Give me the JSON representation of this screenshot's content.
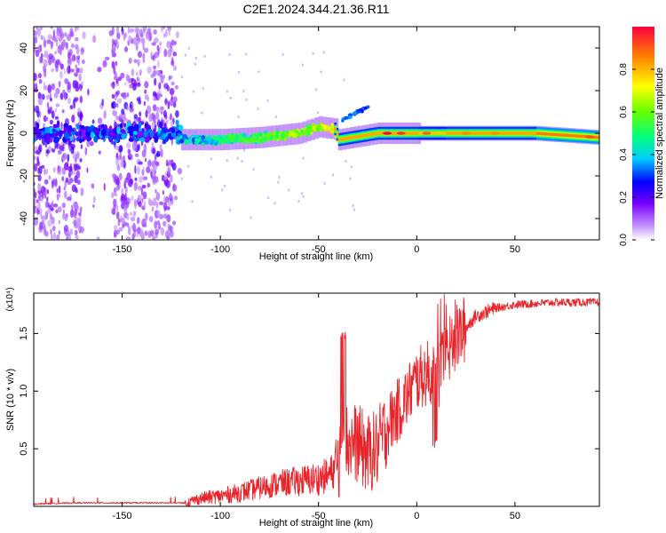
{
  "title": "C2E1.2024.344.21.36.R11",
  "chart_data": [
    {
      "type": "heatmap",
      "id": "spectrogram",
      "xlabel": "Height of straight line (km)",
      "ylabel": "Frequency (Hz)",
      "xlim": [
        -195,
        93
      ],
      "ylim": [
        -50,
        50
      ],
      "xticks": [
        -150,
        -100,
        -50,
        0,
        50
      ],
      "yticks": [
        -40,
        -20,
        0,
        20,
        40
      ],
      "grid": false,
      "colorbar": {
        "label": "Normalized spectral amplitude",
        "range": [
          0,
          1
        ],
        "ticks": [
          0.0,
          0.2,
          0.4,
          0.6,
          0.8
        ]
      },
      "ridge": {
        "description": "dominant frequency track",
        "points": [
          {
            "x": -195,
            "y": 0
          },
          {
            "x": -120,
            "y": -3
          },
          {
            "x": -100,
            "y": -3
          },
          {
            "x": -80,
            "y": -2
          },
          {
            "x": -60,
            "y": 0
          },
          {
            "x": -50,
            "y": 3
          },
          {
            "x": -42,
            "y": 2
          },
          {
            "x": -40,
            "y": -3
          },
          {
            "x": -20,
            "y": 0
          },
          {
            "x": 0,
            "y": 0
          },
          {
            "x": 20,
            "y": 0
          },
          {
            "x": 60,
            "y": 0
          },
          {
            "x": 93,
            "y": -2
          }
        ],
        "branch": [
          {
            "x": -30,
            "y": 8
          },
          {
            "x": -25,
            "y": 13
          }
        ]
      }
    },
    {
      "type": "line",
      "id": "snr",
      "xlabel": "Height of straight line (km)",
      "ylabel": "SNR (10 * v/v)",
      "y_multiplier": "(x10⁴)",
      "xlim": [
        -195,
        93
      ],
      "ylim": [
        0,
        1.85
      ],
      "xticks": [
        -150,
        -100,
        -50,
        0,
        50
      ],
      "yticks": [
        0.5,
        1.0,
        1.5
      ],
      "color": "#e8242a",
      "grid": false,
      "series": [
        {
          "name": "SNR",
          "x": [
            -195,
            -175,
            -150,
            -130,
            -118,
            -110,
            -100,
            -90,
            -80,
            -70,
            -60,
            -50,
            -45,
            -40,
            -38,
            -35,
            -30,
            -25,
            -20,
            -15,
            -10,
            -5,
            0,
            5,
            10,
            15,
            20,
            25,
            30,
            40,
            50,
            60,
            70,
            80,
            93
          ],
          "y": [
            0.02,
            0.03,
            0.03,
            0.03,
            0.03,
            0.07,
            0.09,
            0.12,
            0.16,
            0.2,
            0.22,
            0.24,
            0.27,
            0.35,
            0.6,
            0.55,
            0.55,
            0.45,
            0.5,
            0.7,
            0.82,
            0.95,
            1.1,
            1.15,
            1.1,
            1.3,
            1.45,
            1.55,
            1.65,
            1.72,
            1.75,
            1.76,
            1.77,
            1.77,
            1.77
          ]
        }
      ]
    }
  ]
}
